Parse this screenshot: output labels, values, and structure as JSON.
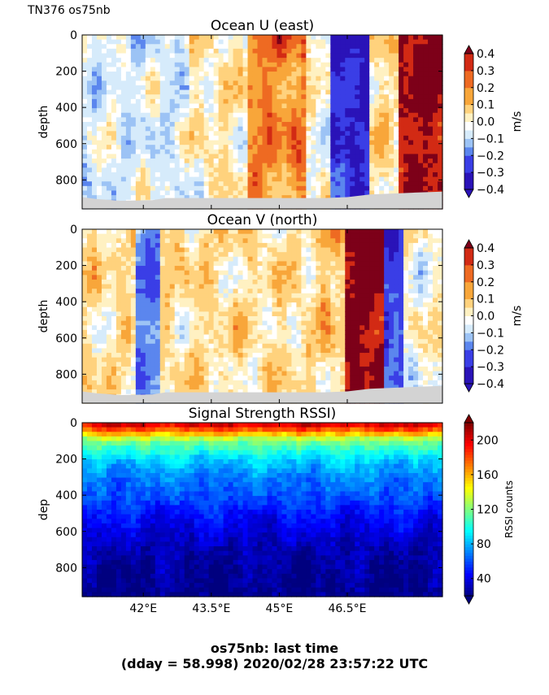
{
  "figure_label": "TN376 os75nb",
  "footer": {
    "line1": "os75nb: last time",
    "line2": "(dday = 58.998) 2020/02/28 23:57:22 UTC"
  },
  "colors": {
    "ocean_levels": [
      "#2a13b8",
      "#3a3ee6",
      "#5b86ee",
      "#9cc3f5",
      "#d6ebfb",
      "#ffffff",
      "#fff1c2",
      "#ffd27d",
      "#f8a63a",
      "#ee6a22",
      "#d22a14",
      "#7d0019"
    ],
    "rssi_jet": [
      "#00007f",
      "#0000ff",
      "#007fff",
      "#00ffff",
      "#7fff7f",
      "#ffff00",
      "#ff7f00",
      "#ff0000",
      "#7f0000"
    ],
    "bottom": "#d3d3d3"
  },
  "chart_data": [
    {
      "type": "heatmap",
      "title": "Ocean U (east)",
      "ylabel": "depth",
      "xlabel": "",
      "xlim": [
        40.65,
        48.6
      ],
      "ylim": [
        960,
        0
      ],
      "y_ticks": [
        "0",
        "200",
        "400",
        "600",
        "800"
      ],
      "y_tick_values": [
        0,
        200,
        400,
        600,
        800
      ],
      "x_ticks": [],
      "colorbar": {
        "label": "m/s",
        "ticks": [
          "0.4",
          "0.3",
          "0.2",
          "0.1",
          "0.0",
          "−0.1",
          "−0.2",
          "−0.3",
          "−0.4"
        ],
        "tick_values": [
          0.4,
          0.3,
          0.2,
          0.1,
          0.0,
          -0.1,
          -0.2,
          -0.3,
          -0.4
        ],
        "range": [
          -0.4,
          0.4
        ]
      },
      "features": [
        {
          "lon_min": 40.65,
          "lon_max": 43.0,
          "value": -0.05
        },
        {
          "lon_min": 43.0,
          "lon_max": 44.3,
          "value": 0.03
        },
        {
          "lon_min": 44.3,
          "lon_max": 45.6,
          "value": 0.2
        },
        {
          "lon_min": 45.6,
          "lon_max": 46.1,
          "value": 0.0
        },
        {
          "lon_min": 46.1,
          "lon_max": 47.0,
          "value": -0.35
        },
        {
          "lon_min": 47.0,
          "lon_max": 47.6,
          "value": 0.05
        },
        {
          "lon_min": 47.6,
          "lon_max": 48.6,
          "value": 0.38
        }
      ]
    },
    {
      "type": "heatmap",
      "title": "Ocean V (north)",
      "ylabel": "depth",
      "xlabel": "",
      "xlim": [
        40.65,
        48.6
      ],
      "ylim": [
        960,
        0
      ],
      "y_ticks": [
        "0",
        "200",
        "400",
        "600",
        "800"
      ],
      "y_tick_values": [
        0,
        200,
        400,
        600,
        800
      ],
      "x_ticks": [],
      "colorbar": {
        "label": "m/s",
        "ticks": [
          "0.4",
          "0.3",
          "0.2",
          "0.1",
          "0.0",
          "−0.1",
          "−0.2",
          "−0.3",
          "−0.4"
        ],
        "tick_values": [
          0.4,
          0.3,
          0.2,
          0.1,
          0.0,
          -0.1,
          -0.2,
          -0.3,
          -0.4
        ],
        "range": [
          -0.4,
          0.4
        ]
      },
      "features": [
        {
          "lon_min": 40.65,
          "lon_max": 41.8,
          "value": 0.05
        },
        {
          "lon_min": 41.8,
          "lon_max": 42.4,
          "value": -0.2
        },
        {
          "lon_min": 42.4,
          "lon_max": 45.9,
          "value": 0.05
        },
        {
          "lon_min": 45.9,
          "lon_max": 46.5,
          "value": 0.1
        },
        {
          "lon_min": 46.5,
          "lon_max": 47.3,
          "value": 0.4
        },
        {
          "lon_min": 47.3,
          "lon_max": 47.7,
          "value": -0.3
        },
        {
          "lon_min": 47.7,
          "lon_max": 48.6,
          "value": 0.0
        }
      ]
    },
    {
      "type": "heatmap",
      "title": "Signal Strength RSSI)",
      "ylabel": "dep",
      "xlabel": "",
      "xlim": [
        40.65,
        48.6
      ],
      "ylim": [
        960,
        0
      ],
      "y_ticks": [
        "0",
        "200",
        "400",
        "600",
        "800"
      ],
      "y_tick_values": [
        0,
        200,
        400,
        600,
        800
      ],
      "x_ticks": [
        "42°E",
        "43.5°E",
        "45°E",
        "46.5°E"
      ],
      "x_tick_values": [
        42.0,
        43.5,
        45.0,
        46.5
      ],
      "colorbar": {
        "label": "RSSI counts",
        "ticks": [
          "200",
          "160",
          "120",
          "80",
          "40"
        ],
        "tick_values": [
          200,
          160,
          120,
          80,
          40
        ],
        "range": [
          20,
          220
        ]
      },
      "profile": [
        {
          "depth": 0,
          "value": 210
        },
        {
          "depth": 50,
          "value": 170
        },
        {
          "depth": 100,
          "value": 120
        },
        {
          "depth": 200,
          "value": 88
        },
        {
          "depth": 300,
          "value": 70
        },
        {
          "depth": 400,
          "value": 62
        },
        {
          "depth": 500,
          "value": 48
        },
        {
          "depth": 600,
          "value": 38
        },
        {
          "depth": 700,
          "value": 30
        },
        {
          "depth": 800,
          "value": 25
        },
        {
          "depth": 960,
          "value": 22
        }
      ]
    }
  ]
}
